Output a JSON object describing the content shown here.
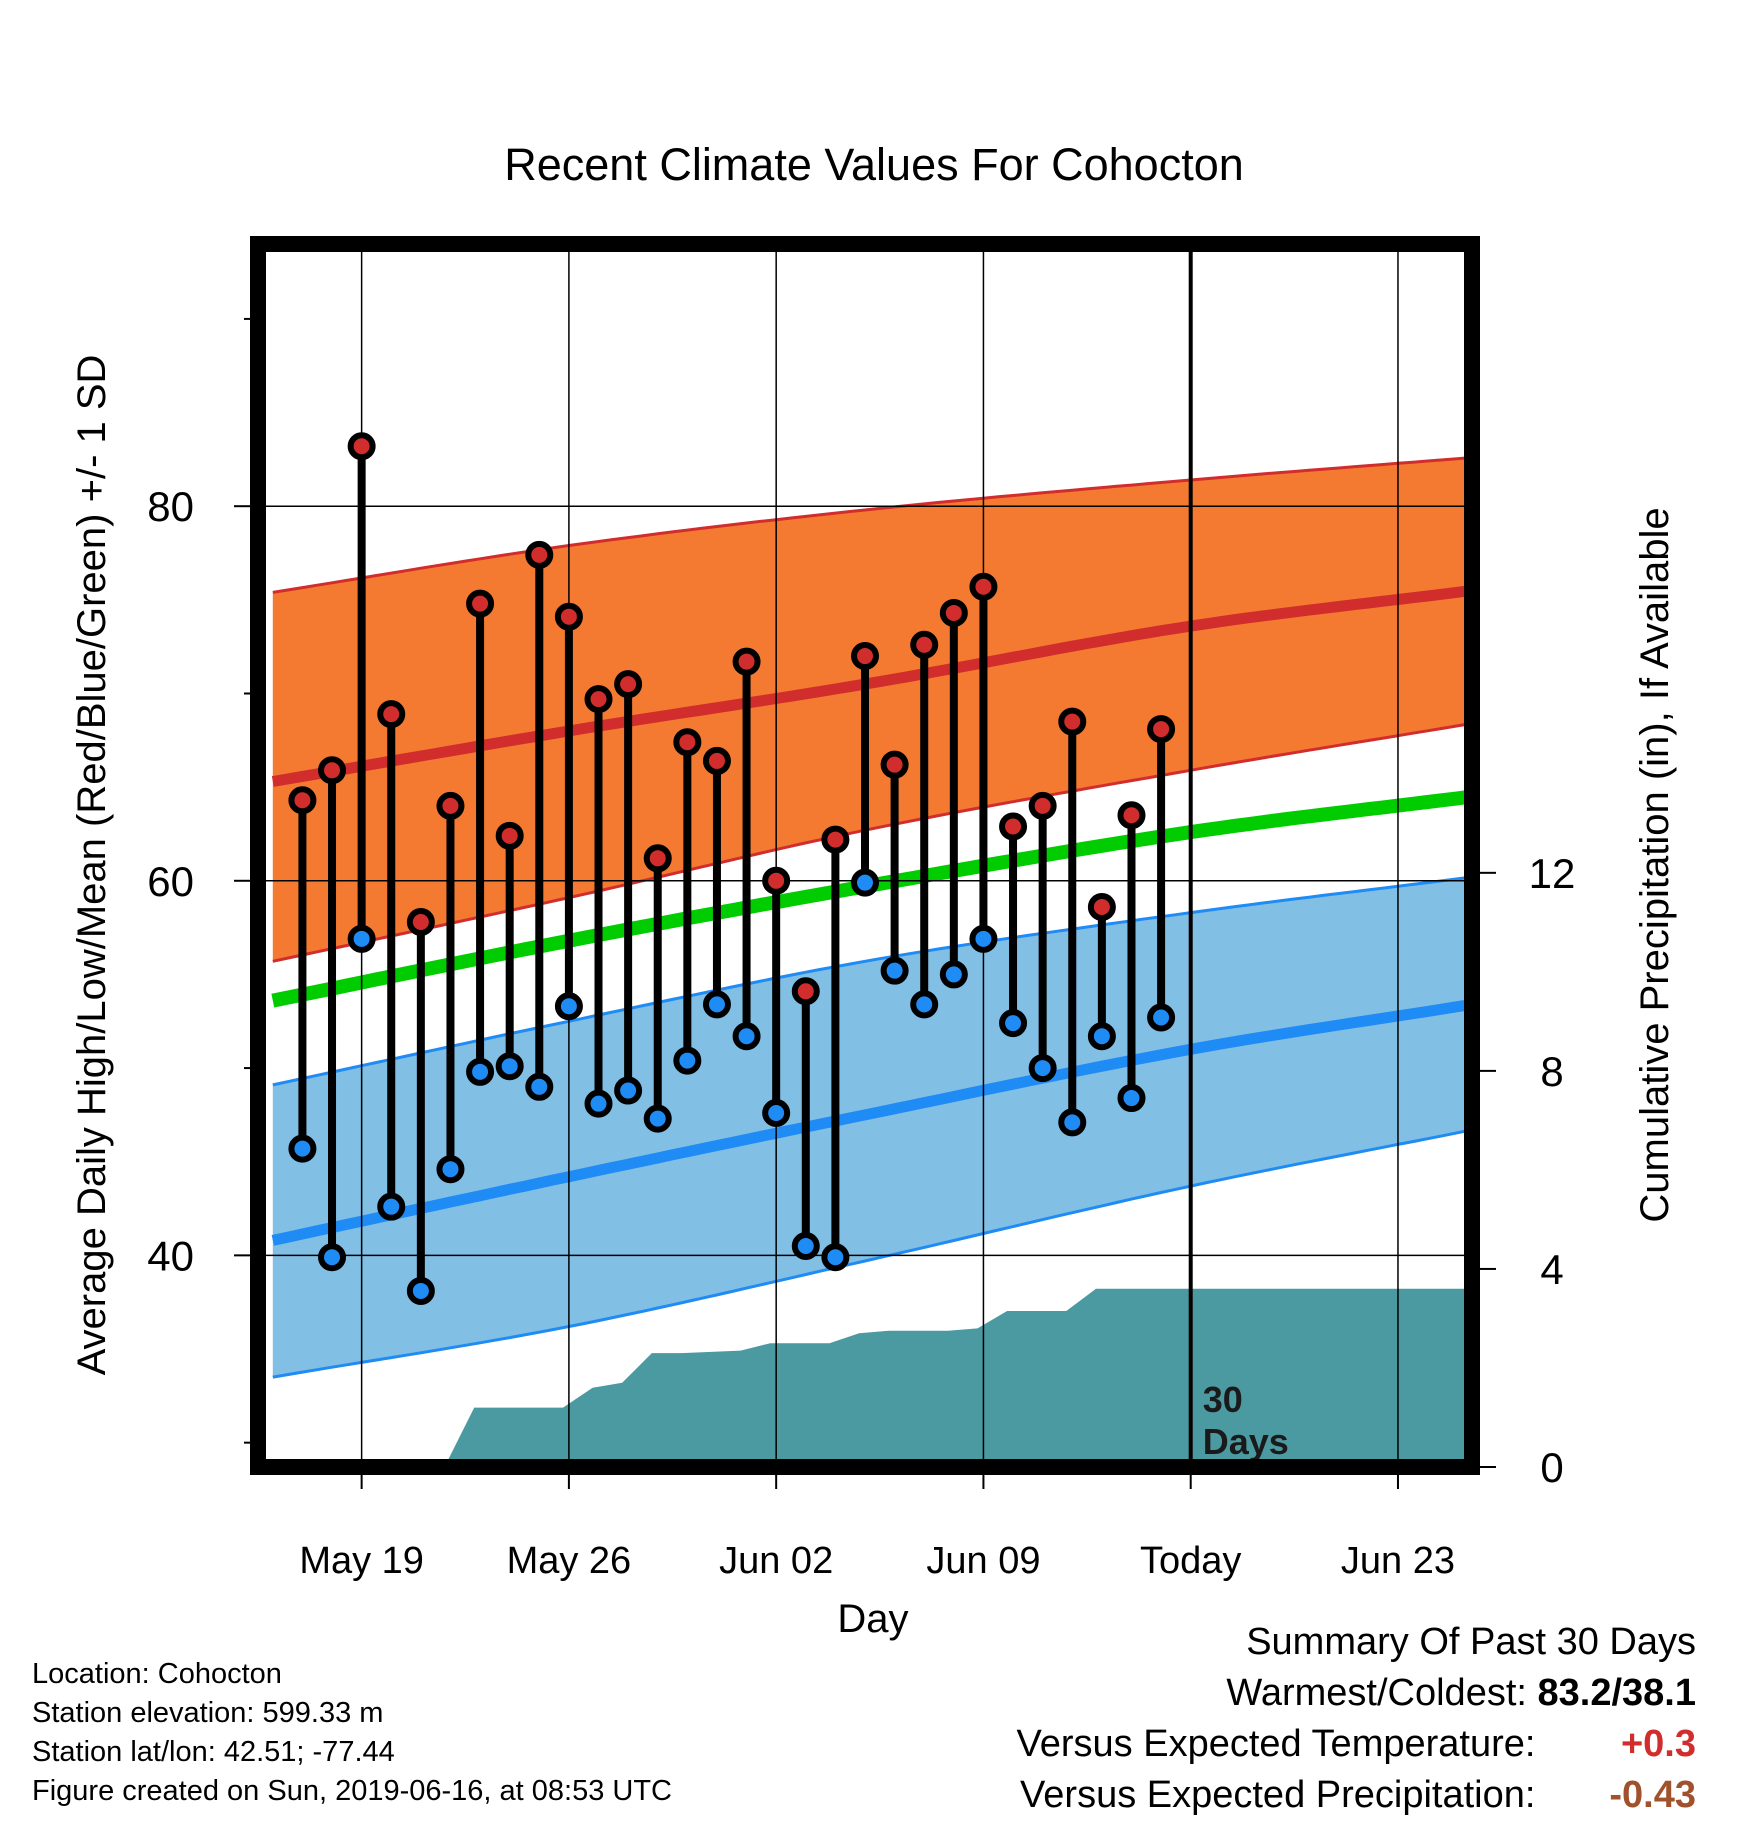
{
  "chart_data": {
    "type": "line",
    "title": "Recent Climate Values For Cohocton",
    "xlabel": "Day",
    "ylabel_left": "Average Daily High/Low/Mean (Red/Blue/Green) +/- 1 SD",
    "ylabel_right": "Cumulative Precipitation (in), If Available",
    "x_tick_labels": [
      "May 19",
      "May 26",
      "Jun 02",
      "Jun 09",
      "Today",
      "Jun 23"
    ],
    "x_tick_days": [
      3,
      10,
      17,
      24,
      31,
      38
    ],
    "y_left_ticks": [
      40,
      60,
      80
    ],
    "y_left_range": [
      28.7,
      94
    ],
    "y_right_ticks": [
      0,
      4,
      8,
      12
    ],
    "y_right_range": [
      0,
      24.7
    ],
    "today_day": 31,
    "days_label": "30\nDays",
    "expected": {
      "days": [
        0,
        10,
        20,
        31,
        40.5
      ],
      "high_mean": [
        65.3,
        68.0,
        70.5,
        73.6,
        75.5
      ],
      "high_upper": [
        75.4,
        77.9,
        79.8,
        81.4,
        82.6
      ],
      "high_lower": [
        55.7,
        59.1,
        62.7,
        65.9,
        68.4
      ],
      "low_mean": [
        40.8,
        44.2,
        47.5,
        51.0,
        53.4
      ],
      "low_upper": [
        49.1,
        52.5,
        55.7,
        58.3,
        60.2
      ],
      "low_lower": [
        33.5,
        36.2,
        39.7,
        43.7,
        46.7
      ],
      "normal_mean": [
        53.6,
        56.8,
        59.7,
        62.6,
        64.5
      ]
    },
    "observed": {
      "days": [
        1,
        2,
        3,
        4,
        5,
        6,
        7,
        8,
        9,
        10,
        11,
        12,
        13,
        14,
        15,
        16,
        17,
        18,
        19,
        20,
        21,
        22,
        23,
        24,
        25,
        26,
        27,
        28,
        29,
        30
      ],
      "high": [
        64.3,
        65.9,
        83.2,
        68.9,
        57.8,
        64.0,
        74.8,
        62.4,
        77.4,
        74.1,
        69.7,
        70.5,
        61.2,
        67.4,
        66.4,
        71.7,
        60.0,
        54.1,
        62.2,
        72.0,
        66.2,
        72.6,
        74.3,
        75.7,
        62.9,
        64.0,
        68.5,
        58.6,
        63.5,
        68.1
      ],
      "low": [
        45.7,
        39.9,
        56.9,
        42.6,
        38.1,
        44.6,
        49.8,
        50.1,
        49.0,
        53.3,
        48.1,
        48.8,
        47.3,
        50.4,
        53.4,
        51.7,
        47.6,
        40.5,
        39.9,
        59.9,
        55.2,
        53.4,
        55.0,
        56.9,
        52.4,
        50.0,
        47.1,
        51.7,
        48.4,
        52.7
      ]
    },
    "precip": {
      "days": [
        0,
        5.8,
        6.8,
        8.8,
        9.8,
        10.8,
        11.8,
        12.8,
        13.8,
        15.8,
        16.8,
        18.8,
        19.8,
        20.8,
        22.8,
        23.8,
        24.8,
        26.8,
        27.8,
        28.8,
        40.5
      ],
      "values": [
        0,
        0,
        1.2,
        1.2,
        1.2,
        1.6,
        1.7,
        2.3,
        2.3,
        2.35,
        2.5,
        2.5,
        2.7,
        2.75,
        2.75,
        2.8,
        3.15,
        3.15,
        3.6,
        3.6,
        3.6
      ]
    },
    "colors": {
      "high_band": "#f47a31",
      "high_line": "#d22d2d",
      "low_band": "#82bfe5",
      "low_line": "#1f8bf5",
      "normal_line": "#00cc00",
      "precip_fill": "#4b99a1",
      "high_dot": "#d22d2d",
      "low_dot": "#1f8bf5"
    },
    "grid": true
  },
  "footer": {
    "location": "Location: Cohocton",
    "elevation": "Station elevation: 599.33 m",
    "latlon": "Station lat/lon: 42.51; -77.44",
    "created": "Figure created on Sun, 2019-06-16, at 08:53 UTC"
  },
  "summary": {
    "heading": "Summary Of Past 30 Days",
    "warmest_label": "Warmest/Coldest:",
    "warmest_value": "83.2/38.1",
    "temp_label": "Versus Expected Temperature:",
    "temp_value": "+0.3",
    "temp_color": "#d22d2d",
    "precip_label": "Versus Expected Precipitation:",
    "precip_value": "-0.43",
    "precip_color": "#a0522d"
  }
}
